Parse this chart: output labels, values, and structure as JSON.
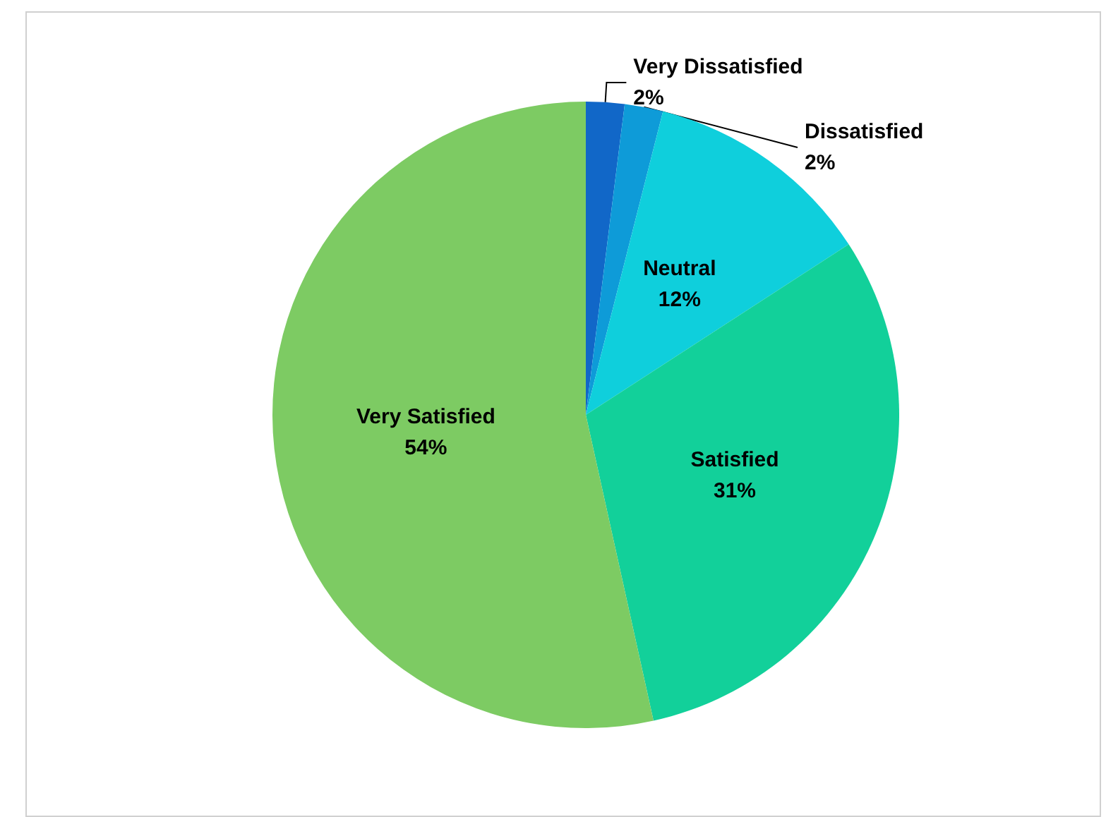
{
  "chart_data": {
    "type": "pie",
    "categories": [
      "Very Dissatisfied",
      "Dissatisfied",
      "Neutral",
      "Satisfied",
      "Very Satisfied"
    ],
    "values": [
      2,
      2,
      12,
      31,
      54
    ],
    "colors": [
      "#1167c8",
      "#0e9bd8",
      "#0fcfdc",
      "#12d09a",
      "#7dcb63"
    ],
    "value_labels": [
      "2%",
      "2%",
      "12%",
      "31%",
      "54%"
    ],
    "legend": false
  }
}
